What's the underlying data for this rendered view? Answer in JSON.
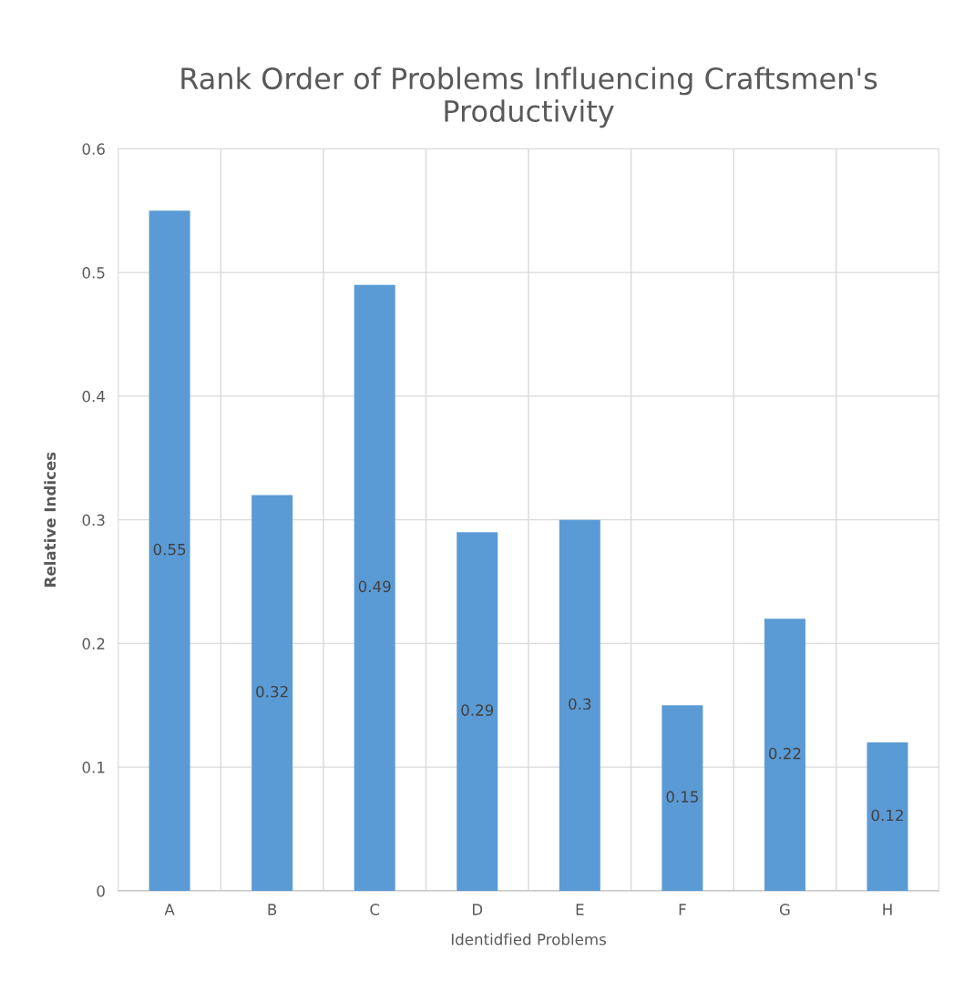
{
  "chart_data": {
    "type": "bar",
    "title": "Rank Order of Problems Influencing Craftsmen's Productivity",
    "xlabel": "Identidfied Problems",
    "ylabel": "Relative Indices",
    "categories": [
      "A",
      "B",
      "C",
      "D",
      "E",
      "F",
      "G",
      "H"
    ],
    "values": [
      0.55,
      0.32,
      0.49,
      0.29,
      0.3,
      0.15,
      0.22,
      0.12
    ],
    "color": "#5b9bd5",
    "ylim": [
      0,
      0.6
    ],
    "yticks": [
      0,
      0.1,
      0.2,
      0.3,
      0.4,
      0.5,
      0.6
    ],
    "grid": true,
    "data_labels": true
  }
}
